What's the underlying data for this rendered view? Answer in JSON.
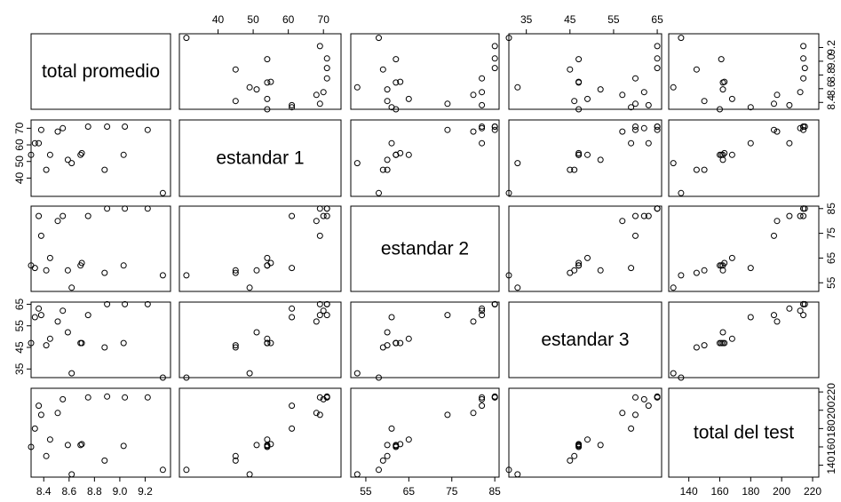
{
  "chart_data": {
    "type": "scatter",
    "variables": [
      "total promedio",
      "estandar 1",
      "estandar 2",
      "estandar 3",
      "total del test"
    ],
    "ranges": [
      [
        8.3,
        9.4
      ],
      [
        29,
        75
      ],
      [
        51.5,
        86
      ],
      [
        31,
        66
      ],
      [
        127,
        224
      ]
    ],
    "ticks": [
      [
        "8.4",
        "8.6",
        "8.8",
        "9.0",
        "9.2"
      ],
      [
        "40",
        "50",
        "60",
        "70"
      ],
      [
        "55",
        "65",
        "75",
        "85"
      ],
      [
        "35",
        "45",
        "55",
        "65"
      ],
      [
        "140",
        "160",
        "180",
        "200",
        "220"
      ]
    ],
    "observations": [
      [
        9.34,
        31,
        58,
        31,
        135
      ],
      [
        9.22,
        69,
        85,
        65,
        214
      ],
      [
        9.04,
        71,
        85,
        65,
        214
      ],
      [
        8.9,
        71,
        85,
        65,
        215
      ],
      [
        8.3,
        54,
        62,
        47,
        160
      ],
      [
        8.36,
        61,
        82,
        63,
        205
      ],
      [
        8.45,
        54,
        65,
        49,
        168
      ],
      [
        8.42,
        45,
        60,
        46,
        150
      ],
      [
        8.38,
        69,
        74,
        60,
        195
      ],
      [
        8.55,
        70,
        82,
        62,
        212
      ],
      [
        8.62,
        49,
        53,
        33,
        130
      ],
      [
        8.69,
        54,
        62,
        47,
        162
      ],
      [
        8.75,
        71,
        82,
        60,
        214
      ],
      [
        8.7,
        55,
        63,
        47,
        163
      ],
      [
        8.88,
        45,
        59,
        45,
        145
      ],
      [
        9.03,
        54,
        62,
        47,
        161
      ],
      [
        8.51,
        68,
        80,
        57,
        197
      ],
      [
        8.59,
        51,
        60,
        52,
        162
      ],
      [
        8.33,
        61,
        61,
        59,
        180
      ]
    ],
    "legend": "none",
    "grid": false
  }
}
